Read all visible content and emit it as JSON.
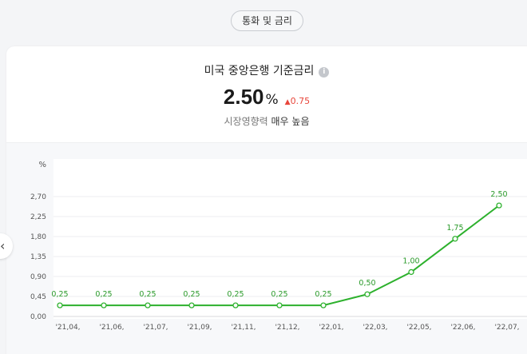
{
  "chip": {
    "label": "통화 및 금리"
  },
  "header": {
    "title": "미국 중앙은행 기준금리",
    "info_icon": "info-icon",
    "value": "2.50",
    "unit": "%",
    "change_arrow": "▲",
    "change": "0.75",
    "change_color": "#e8463b",
    "influence_label": "시장영향력",
    "influence_value": "매우 높음"
  },
  "nav": {
    "prev_icon": "chevron-left-icon"
  },
  "chart_data": {
    "type": "line",
    "ylabel": "%",
    "yticks": [
      "0,00",
      "0,45",
      "0,90",
      "1,35",
      "1,80",
      "2,25",
      "2,70"
    ],
    "ylim": [
      0,
      2.7
    ],
    "categories": [
      "'21,04,",
      "'21,06,",
      "'21,07,",
      "'21,09,",
      "'21,11,",
      "'21,12,",
      "'22,01,",
      "'22,03,",
      "'22,05,",
      "'22,06,",
      "'22,07,"
    ],
    "values": [
      0.25,
      0.25,
      0.25,
      0.25,
      0.25,
      0.25,
      0.25,
      0.5,
      1.0,
      1.75,
      2.5
    ],
    "value_labels": [
      "0,25",
      "0,25",
      "0,25",
      "0,25",
      "0,25",
      "0,25",
      "0,25",
      "0,50",
      "1,00",
      "1,75",
      "2,50"
    ],
    "line_color": "#2db12d",
    "grid": true
  }
}
